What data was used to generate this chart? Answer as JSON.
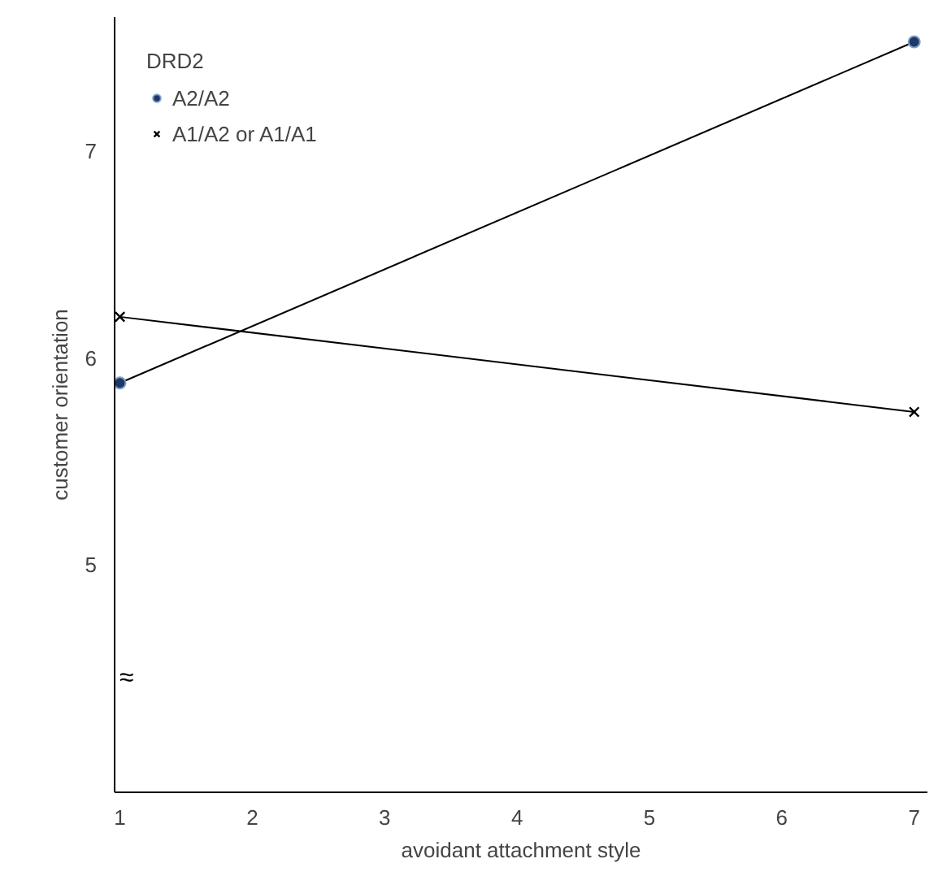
{
  "chart_data": {
    "type": "line",
    "xlabel": "avoidant attachment style",
    "ylabel": "customer orientation",
    "legend_title": "DRD2",
    "x": [
      1,
      7
    ],
    "xlim": [
      0.96,
      7.1
    ],
    "xticks": [
      1,
      2,
      3,
      4,
      5,
      6,
      7
    ],
    "ylim": [
      3.9,
      7.65
    ],
    "yticks": [
      5,
      6,
      7
    ],
    "grid": false,
    "legend": "top left",
    "annotations": [
      "≈"
    ],
    "series": [
      {
        "name": "A2/A2",
        "color": "#1f3864",
        "marker": "circle",
        "values": [
          5.88,
          7.53
        ]
      },
      {
        "name": "A1/A2 or A1/A1",
        "color": "#000000",
        "marker": "cross",
        "values": [
          6.2,
          5.74
        ]
      }
    ]
  }
}
